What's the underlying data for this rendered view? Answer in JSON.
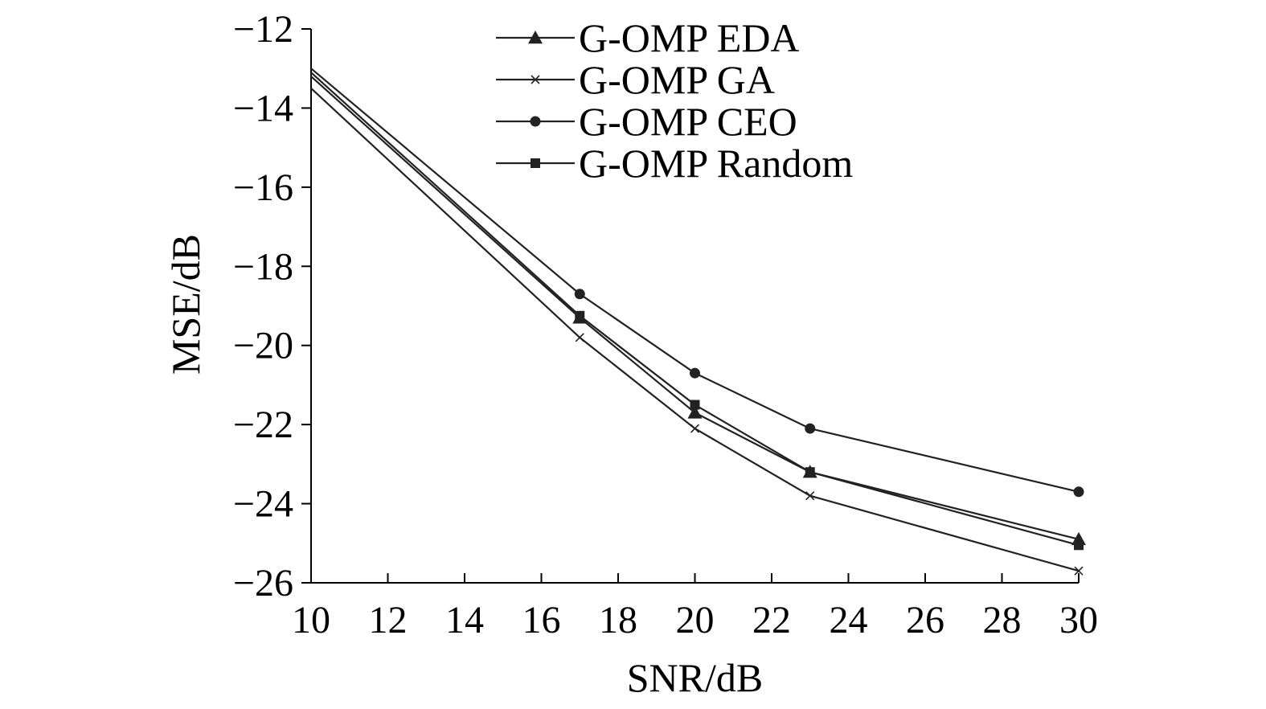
{
  "chart_data": {
    "type": "line",
    "title": "",
    "xlabel": "SNR/dB",
    "ylabel": "MSE/dB",
    "xlim": [
      10,
      30
    ],
    "ylim": [
      -26,
      -12
    ],
    "xticks": [
      10,
      12,
      14,
      16,
      18,
      20,
      22,
      24,
      26,
      28,
      30
    ],
    "yticks": [
      -12,
      -14,
      -16,
      -18,
      -20,
      -22,
      -24,
      -26
    ],
    "xtick_labels": [
      "10",
      "12",
      "14",
      "16",
      "18",
      "20",
      "22",
      "24",
      "26",
      "28",
      "30"
    ],
    "ytick_labels": [
      "−12",
      "−14",
      "−16",
      "−18",
      "−20",
      "−22",
      "−24",
      "−26"
    ],
    "grid": false,
    "legend_position": "top-center",
    "x": [
      10,
      17,
      20,
      23,
      30
    ],
    "series": [
      {
        "name": "G-OMP EDA",
        "marker": "triangle",
        "color": "#222222",
        "values": [
          -13.2,
          -19.3,
          -21.7,
          -23.2,
          -24.9
        ]
      },
      {
        "name": "G-OMP GA",
        "marker": "x",
        "color": "#222222",
        "values": [
          -13.5,
          -19.8,
          -22.1,
          -23.8,
          -25.7
        ]
      },
      {
        "name": "G-OMP CEO",
        "marker": "circle",
        "color": "#222222",
        "values": [
          -13.0,
          -18.7,
          -20.7,
          -22.1,
          -23.7
        ]
      },
      {
        "name": "G-OMP Random",
        "marker": "square",
        "color": "#222222",
        "values": [
          -13.1,
          -19.25,
          -21.5,
          -23.2,
          -25.05
        ]
      }
    ]
  }
}
